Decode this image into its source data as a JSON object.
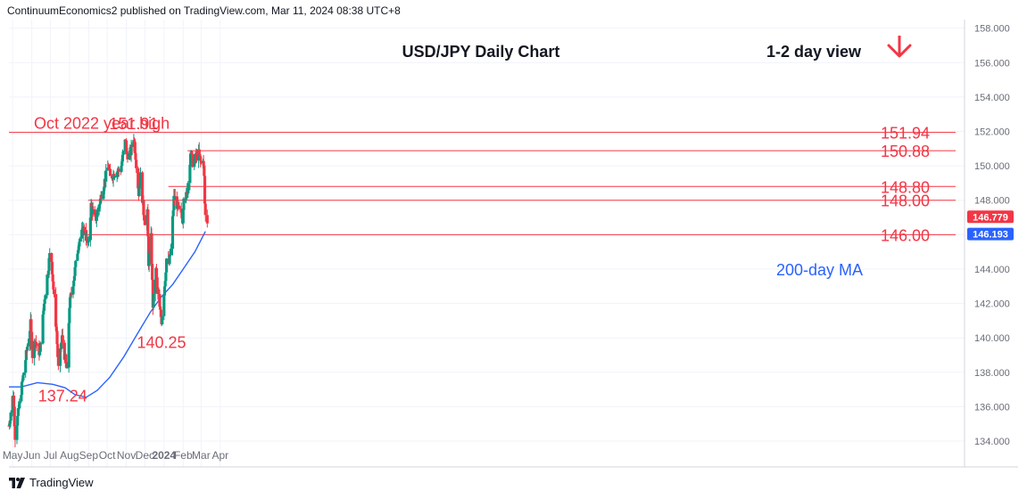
{
  "header": {
    "publisher": "ContinuumEconomics2 published on TradingView.com, Mar 11, 2024 08:38 UTC+8"
  },
  "footer": {
    "brand": "TradingView"
  },
  "colors": {
    "up": "#089981",
    "down": "#f23645",
    "level": "#f23645",
    "ma": "#2962ff",
    "annot": "#f23645",
    "text": "#131722",
    "axis": "#6a6d78",
    "grid": "#f0f3fa"
  },
  "chart_data": {
    "type": "candlestick",
    "title": "USD/JPY Daily Chart",
    "subtitle": "1-2 day view",
    "ylim": [
      132.5,
      158.5
    ],
    "y_ticks": [
      "134.000",
      "136.000",
      "138.000",
      "140.000",
      "142.000",
      "144.000",
      "146.000",
      "148.000",
      "150.000",
      "152.000",
      "154.000",
      "156.000",
      "158.000"
    ],
    "x_ticks": [
      "May",
      "Jun",
      "Jul",
      "Aug",
      "Sep",
      "Oct",
      "Nov",
      "Dec",
      "2024",
      "Feb",
      "Mar",
      "Apr"
    ],
    "price_badges": [
      {
        "label": "146.779",
        "value": 146.779,
        "color": "#f23645"
      },
      {
        "label": "146.193",
        "value": 146.193,
        "color": "#2962ff"
      }
    ],
    "levels": [
      {
        "label": "Oct 2022 year high",
        "value": 151.94,
        "span": "full"
      },
      {
        "label": "151.94",
        "value": 151.94
      },
      {
        "label": "150.88",
        "value": 150.88
      },
      {
        "label": "148.80",
        "value": 148.8
      },
      {
        "label": "148.00",
        "value": 148.0
      },
      {
        "label": "146.00",
        "value": 146.0
      }
    ],
    "annotations": [
      {
        "text": "151.91",
        "value": 151.91,
        "anchor": "2023-11-13"
      },
      {
        "text": "140.25",
        "value": 140.25,
        "anchor": "2023-12-28"
      },
      {
        "text": "137.24",
        "value": 137.24,
        "anchor": "2023-07-28"
      },
      {
        "text": "200-day MA",
        "value": 144.0,
        "anchor": "2024-02-10"
      }
    ],
    "ma_series": {
      "name": "200-day MA",
      "points": [
        [
          "2023-04-25",
          137.15
        ],
        [
          "2023-05-15",
          137.15
        ],
        [
          "2023-06-10",
          137.4
        ],
        [
          "2023-07-05",
          137.3
        ],
        [
          "2023-07-25",
          137.1
        ],
        [
          "2023-08-10",
          136.7
        ],
        [
          "2023-08-28",
          136.55
        ],
        [
          "2023-09-15",
          136.95
        ],
        [
          "2023-10-05",
          137.7
        ],
        [
          "2023-10-28",
          138.9
        ],
        [
          "2023-11-20",
          140.3
        ],
        [
          "2023-12-10",
          141.5
        ],
        [
          "2023-12-28",
          142.4
        ],
        [
          "2024-01-15",
          143.1
        ],
        [
          "2024-02-01",
          144.0
        ],
        [
          "2024-02-20",
          145.0
        ],
        [
          "2024-03-08",
          146.19
        ]
      ]
    },
    "series": [
      {
        "name": "USD/JPY",
        "anchors": [
          [
            "2023-04-25",
            134.9
          ],
          [
            "2023-05-02",
            136.8
          ],
          [
            "2023-05-05",
            134.3
          ],
          [
            "2023-05-19",
            138.0
          ],
          [
            "2023-05-30",
            140.8
          ],
          [
            "2023-06-02",
            139.0
          ],
          [
            "2023-06-06",
            139.9
          ],
          [
            "2023-06-14",
            139.1
          ],
          [
            "2023-06-22",
            142.4
          ],
          [
            "2023-06-30",
            144.8
          ],
          [
            "2023-07-03",
            144.5
          ],
          [
            "2023-07-07",
            142.3
          ],
          [
            "2023-07-11",
            140.4
          ],
          [
            "2023-07-14",
            138.2
          ],
          [
            "2023-07-20",
            140.0
          ],
          [
            "2023-07-28",
            138.0
          ],
          [
            "2023-08-01",
            141.9
          ],
          [
            "2023-08-09",
            143.7
          ],
          [
            "2023-08-16",
            145.6
          ],
          [
            "2023-08-25",
            146.4
          ],
          [
            "2023-08-31",
            145.3
          ],
          [
            "2023-09-05",
            147.7
          ],
          [
            "2023-09-12",
            146.8
          ],
          [
            "2023-09-19",
            147.9
          ],
          [
            "2023-09-26",
            149.0
          ],
          [
            "2023-10-03",
            150.0
          ],
          [
            "2023-10-06",
            149.3
          ],
          [
            "2023-10-13",
            149.6
          ],
          [
            "2023-10-23",
            149.8
          ],
          [
            "2023-10-31",
            151.6
          ],
          [
            "2023-11-01",
            150.7
          ],
          [
            "2023-11-07",
            150.6
          ],
          [
            "2023-11-13",
            151.7
          ],
          [
            "2023-11-16",
            150.6
          ],
          [
            "2023-11-21",
            148.4
          ],
          [
            "2023-11-24",
            149.4
          ],
          [
            "2023-11-29",
            147.3
          ],
          [
            "2023-12-01",
            146.8
          ],
          [
            "2023-12-05",
            147.2
          ],
          [
            "2023-12-07",
            144.4
          ],
          [
            "2023-12-11",
            145.8
          ],
          [
            "2023-12-14",
            141.9
          ],
          [
            "2023-12-19",
            143.9
          ],
          [
            "2023-12-22",
            142.4
          ],
          [
            "2023-12-28",
            141.0
          ],
          [
            "2024-01-03",
            143.5
          ],
          [
            "2024-01-05",
            144.6
          ],
          [
            "2024-01-09",
            144.3
          ],
          [
            "2024-01-12",
            145.1
          ],
          [
            "2024-01-17",
            148.1
          ],
          [
            "2024-01-19",
            148.1
          ],
          [
            "2024-01-24",
            147.5
          ],
          [
            "2024-01-31",
            146.9
          ],
          [
            "2024-02-02",
            148.4
          ],
          [
            "2024-02-07",
            148.2
          ],
          [
            "2024-02-13",
            150.8
          ],
          [
            "2024-02-16",
            150.2
          ],
          [
            "2024-02-22",
            150.5
          ],
          [
            "2024-02-26",
            150.7
          ],
          [
            "2024-03-01",
            150.1
          ],
          [
            "2024-03-04",
            150.5
          ],
          [
            "2024-03-05",
            149.9
          ],
          [
            "2024-03-06",
            149.3
          ],
          [
            "2024-03-07",
            147.8
          ],
          [
            "2024-03-08",
            147.1
          ],
          [
            "2024-03-11",
            146.78
          ]
        ]
      }
    ]
  }
}
